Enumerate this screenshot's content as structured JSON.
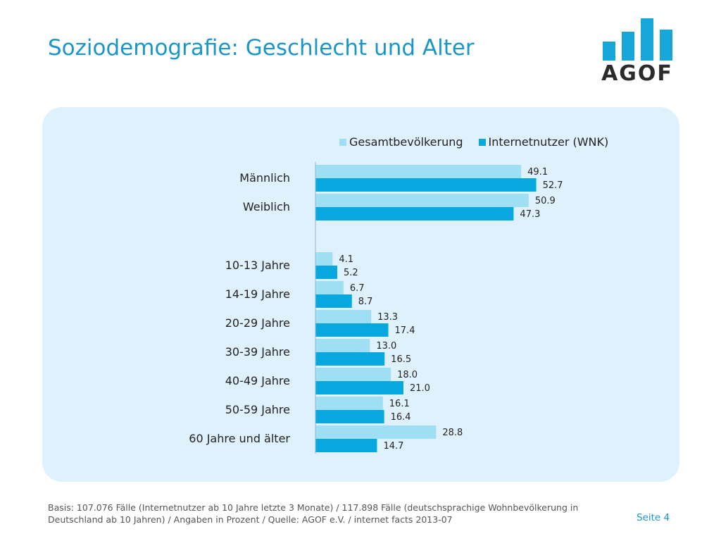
{
  "title": "Soziodemografie: Geschlecht und Alter",
  "logo": {
    "text": "AGOF",
    "bar_color": "#16a6d9",
    "text_color": "#2b2b2b"
  },
  "colors": {
    "gesamt": "#9edff4",
    "internet": "#07a8df",
    "panel": "#dff1fc",
    "title": "#1a97c8"
  },
  "footnote": "Basis: 107.076 Fälle (Internetnutzer ab 10 Jahre letzte 3 Monate) / 117.898 Fälle (deutschsprachige Wohnbevölkerung in Deutschland ab 10 Jahren) / Angaben in Prozent / Quelle: AGOF e.V. / internet facts 2013-07",
  "page": "Seite 4",
  "chart_data": {
    "type": "bar",
    "orientation": "horizontal",
    "legend_position": "top",
    "grid": false,
    "categories": [
      "Männlich",
      "Weiblich",
      "10-13 Jahre",
      "14-19 Jahre",
      "20-29 Jahre",
      "30-39 Jahre",
      "40-49 Jahre",
      "50-59 Jahre",
      "60 Jahre und älter"
    ],
    "series": [
      {
        "name": "Gesamtbevölkerung",
        "color": "#9edff4",
        "values": [
          49.1,
          50.9,
          4.1,
          6.7,
          13.3,
          13.0,
          18.0,
          16.1,
          28.8
        ]
      },
      {
        "name": "Internetnutzer (WNK)",
        "color": "#07a8df",
        "values": [
          52.7,
          47.3,
          5.2,
          8.7,
          17.4,
          16.5,
          21.0,
          16.4,
          14.7
        ]
      }
    ],
    "value_labels": [
      [
        "49.1",
        "50.9",
        "4.1",
        "6.7",
        "13.3",
        "13.0",
        "18.0",
        "16.1",
        "28.8"
      ],
      [
        "52.7",
        "47.3",
        "5.2",
        "8.7",
        "17.4",
        "16.5",
        "21.0",
        "16.4",
        "14.7"
      ]
    ],
    "xlim": [
      0,
      60
    ]
  }
}
